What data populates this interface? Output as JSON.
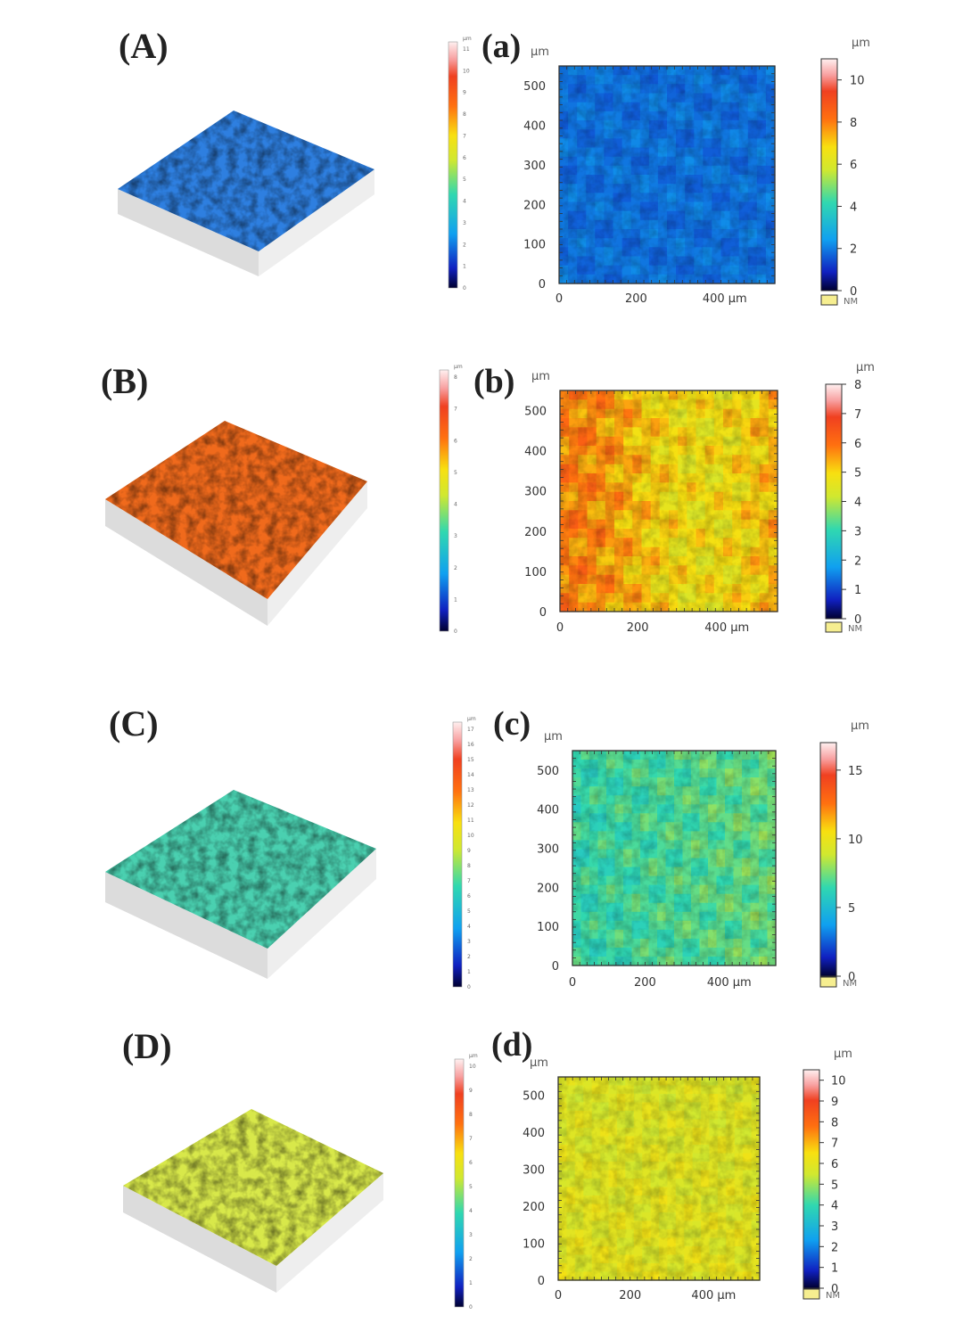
{
  "chart_data": [
    {
      "type": "heatmap",
      "panel_3d_label": "(A)",
      "panel_2d_label": "(a)",
      "x_ticks": [
        "0",
        "200",
        "400 µm"
      ],
      "y_ticks": [
        "0",
        "100",
        "200",
        "300",
        "400",
        "500"
      ],
      "y_unit": "µm",
      "xlim": [
        0,
        560
      ],
      "ylim": [
        0,
        550
      ],
      "colorbar": {
        "unit": "µm",
        "min": 0,
        "max": 11,
        "ticks": [
          "0",
          "2",
          "4",
          "6",
          "8",
          "10"
        ]
      },
      "small_colorbar": {
        "unit": "µm",
        "ticks": [
          "0",
          "1",
          "2",
          "3",
          "4",
          "5",
          "6",
          "7",
          "8",
          "9",
          "10",
          "11"
        ]
      },
      "surface_color": "#2e7fe0",
      "legend_nm": "NM"
    },
    {
      "type": "heatmap",
      "panel_3d_label": "(B)",
      "panel_2d_label": "(b)",
      "x_ticks": [
        "0",
        "200",
        "400 µm"
      ],
      "y_ticks": [
        "0",
        "100",
        "200",
        "300",
        "400",
        "500"
      ],
      "y_unit": "µm",
      "xlim": [
        0,
        560
      ],
      "ylim": [
        0,
        550
      ],
      "colorbar": {
        "unit": "µm",
        "min": 0,
        "max": 8,
        "ticks": [
          "0",
          "1",
          "2",
          "3",
          "4",
          "5",
          "6",
          "7",
          "8"
        ]
      },
      "small_colorbar": {
        "unit": "µm",
        "ticks": [
          "0",
          "1",
          "2",
          "3",
          "4",
          "5",
          "6",
          "7",
          "8"
        ]
      },
      "surface_color": "#f06a1c",
      "legend_nm": "NM"
    },
    {
      "type": "heatmap",
      "panel_3d_label": "(C)",
      "panel_2d_label": "(c)",
      "x_ticks": [
        "0",
        "200",
        "400 µm"
      ],
      "y_ticks": [
        "0",
        "100",
        "200",
        "300",
        "400",
        "500"
      ],
      "y_unit": "µm",
      "xlim": [
        0,
        560
      ],
      "ylim": [
        0,
        550
      ],
      "colorbar": {
        "unit": "µm",
        "min": 0,
        "max": 17,
        "ticks": [
          "0",
          "5",
          "10",
          "15"
        ]
      },
      "small_colorbar": {
        "unit": "µm",
        "ticks": [
          "0",
          "1",
          "2",
          "3",
          "4",
          "5",
          "6",
          "7",
          "8",
          "9",
          "10",
          "11",
          "12",
          "13",
          "14",
          "15",
          "16",
          "17"
        ]
      },
      "surface_color": "#4ad0b0",
      "legend_nm": "NM"
    },
    {
      "type": "heatmap",
      "panel_3d_label": "(D)",
      "panel_2d_label": "(d)",
      "x_ticks": [
        "0",
        "200",
        "400 µm"
      ],
      "y_ticks": [
        "0",
        "100",
        "200",
        "300",
        "400",
        "500"
      ],
      "y_unit": "µm",
      "xlim": [
        0,
        560
      ],
      "ylim": [
        0,
        550
      ],
      "colorbar": {
        "unit": "µm",
        "min": 0,
        "max": 10.5,
        "ticks": [
          "0",
          "1",
          "2",
          "3",
          "4",
          "5",
          "6",
          "7",
          "8",
          "9",
          "10"
        ]
      },
      "small_colorbar": {
        "unit": "µm",
        "ticks": [
          "0",
          "1",
          "2",
          "3",
          "4",
          "5",
          "6",
          "7",
          "8",
          "9",
          "10"
        ]
      },
      "surface_color": "#d8e84a",
      "legend_nm": "NM"
    }
  ]
}
